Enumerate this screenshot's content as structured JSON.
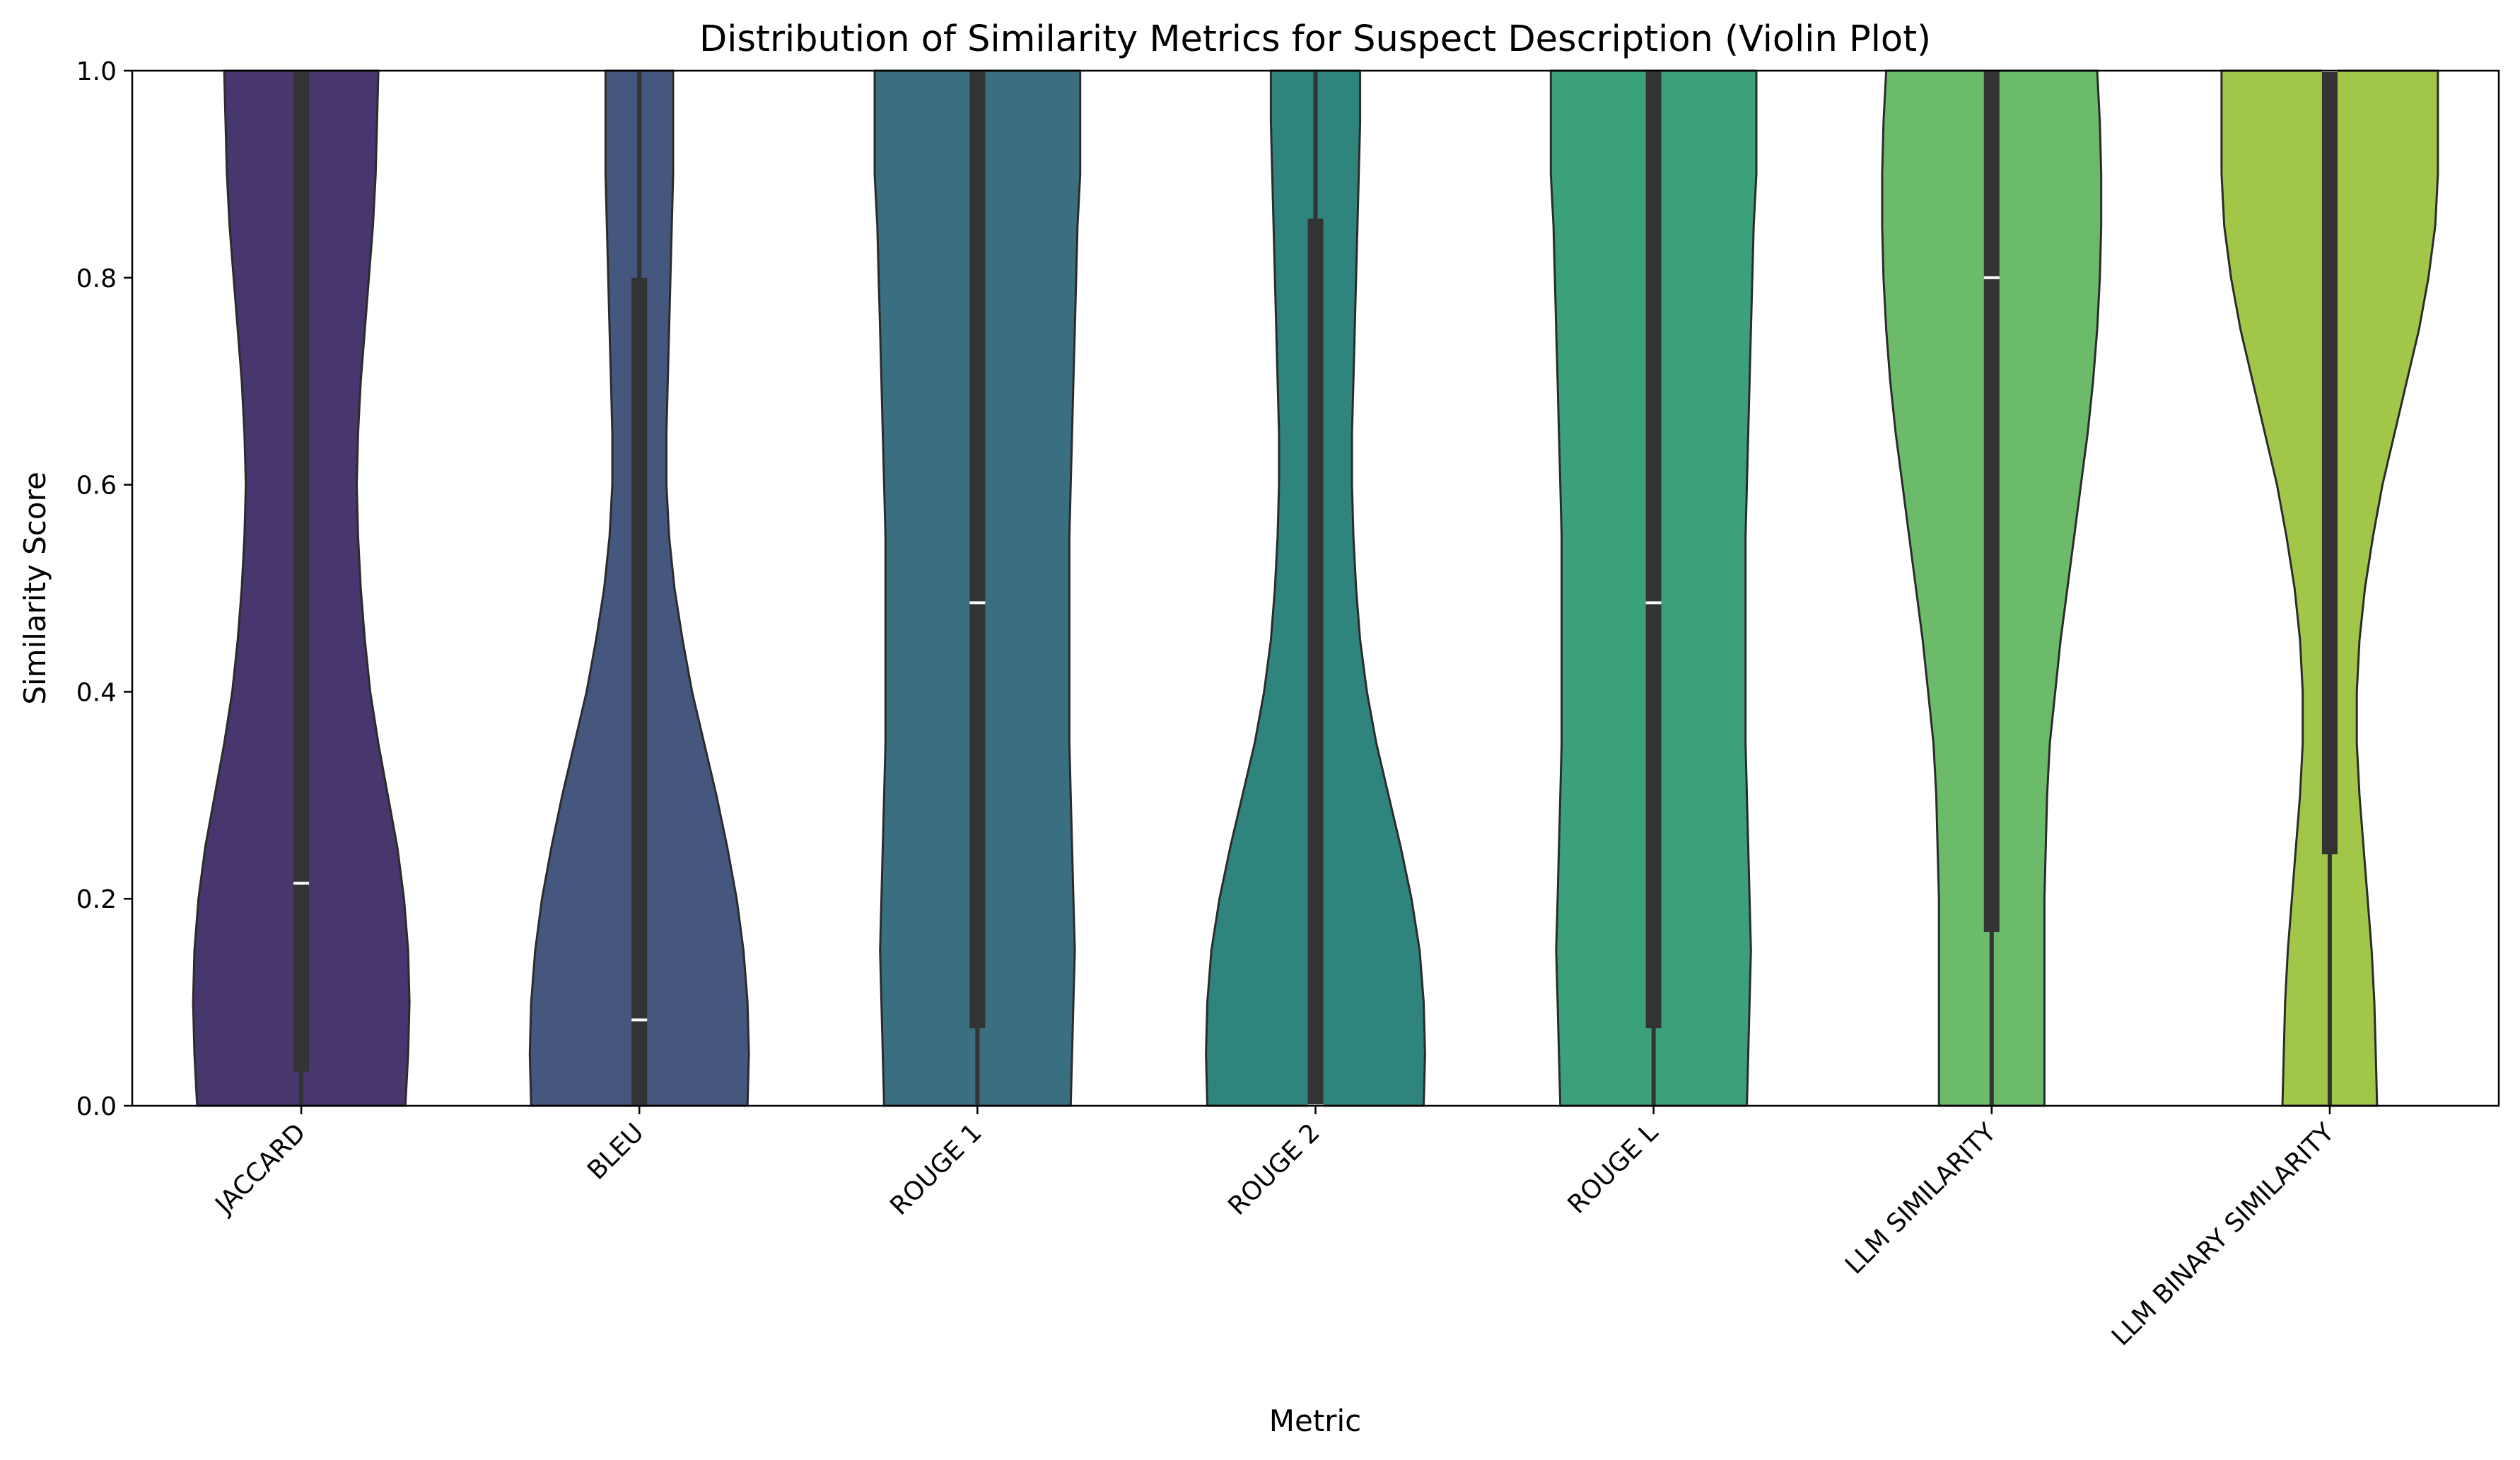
{
  "chart_data": {
    "type": "violin",
    "title": "Distribution of Similarity Metrics for Suspect Description (Violin Plot)",
    "xlabel": "Metric",
    "ylabel": "Similarity Score",
    "ylim": [
      0,
      1
    ],
    "yticks": [
      "0.0",
      "0.2",
      "0.4",
      "0.6",
      "0.8",
      "1.0"
    ],
    "grid": false,
    "legend": "none",
    "categories": [
      "JACCARD",
      "BLEU",
      "ROUGE 1",
      "ROUGE 2",
      "ROUGE L",
      "LLM SIMILARITY",
      "LLM BINARY SIMILARITY"
    ],
    "series": [
      {
        "color": "#48366f",
        "median": 0.215,
        "q1": 0.033,
        "q3": 1.0,
        "whisker_low": 0.0,
        "whisker_high": 1.0,
        "density": [
          [
            0.0,
            0.385
          ],
          [
            0.05,
            0.395
          ],
          [
            0.1,
            0.4
          ],
          [
            0.15,
            0.395
          ],
          [
            0.2,
            0.38
          ],
          [
            0.25,
            0.355
          ],
          [
            0.3,
            0.32
          ],
          [
            0.35,
            0.285
          ],
          [
            0.4,
            0.255
          ],
          [
            0.45,
            0.235
          ],
          [
            0.5,
            0.22
          ],
          [
            0.55,
            0.21
          ],
          [
            0.6,
            0.205
          ],
          [
            0.65,
            0.21
          ],
          [
            0.7,
            0.22
          ],
          [
            0.75,
            0.235
          ],
          [
            0.8,
            0.25
          ],
          [
            0.85,
            0.265
          ],
          [
            0.9,
            0.275
          ],
          [
            0.95,
            0.28
          ],
          [
            1.0,
            0.285
          ]
        ]
      },
      {
        "color": "#45577e",
        "median": 0.083,
        "q1": 0.0,
        "q3": 0.8,
        "whisker_low": 0.0,
        "whisker_high": 1.0,
        "density": [
          [
            0.0,
            0.4
          ],
          [
            0.05,
            0.405
          ],
          [
            0.1,
            0.4
          ],
          [
            0.15,
            0.385
          ],
          [
            0.2,
            0.36
          ],
          [
            0.25,
            0.325
          ],
          [
            0.3,
            0.285
          ],
          [
            0.35,
            0.24
          ],
          [
            0.4,
            0.195
          ],
          [
            0.45,
            0.16
          ],
          [
            0.5,
            0.13
          ],
          [
            0.55,
            0.11
          ],
          [
            0.6,
            0.1
          ],
          [
            0.65,
            0.1
          ],
          [
            0.7,
            0.105
          ],
          [
            0.75,
            0.11
          ],
          [
            0.8,
            0.115
          ],
          [
            0.85,
            0.12
          ],
          [
            0.9,
            0.125
          ],
          [
            0.95,
            0.125
          ],
          [
            1.0,
            0.125
          ]
        ]
      },
      {
        "color": "#3a6f82",
        "median": 0.486,
        "q1": 0.075,
        "q3": 1.0,
        "whisker_low": 0.0,
        "whisker_high": 1.0,
        "density": [
          [
            0.0,
            0.345
          ],
          [
            0.05,
            0.35
          ],
          [
            0.1,
            0.355
          ],
          [
            0.15,
            0.36
          ],
          [
            0.2,
            0.355
          ],
          [
            0.25,
            0.35
          ],
          [
            0.3,
            0.345
          ],
          [
            0.35,
            0.34
          ],
          [
            0.4,
            0.34
          ],
          [
            0.45,
            0.34
          ],
          [
            0.5,
            0.34
          ],
          [
            0.55,
            0.34
          ],
          [
            0.6,
            0.345
          ],
          [
            0.65,
            0.35
          ],
          [
            0.7,
            0.355
          ],
          [
            0.75,
            0.36
          ],
          [
            0.8,
            0.365
          ],
          [
            0.85,
            0.37
          ],
          [
            0.9,
            0.38
          ],
          [
            0.95,
            0.38
          ],
          [
            1.0,
            0.38
          ]
        ]
      },
      {
        "color": "#2f847d",
        "median": 0.0,
        "q1": 0.0,
        "q3": 0.857,
        "whisker_low": 0.0,
        "whisker_high": 1.0,
        "density": [
          [
            0.0,
            0.4
          ],
          [
            0.05,
            0.405
          ],
          [
            0.1,
            0.4
          ],
          [
            0.15,
            0.385
          ],
          [
            0.2,
            0.355
          ],
          [
            0.25,
            0.315
          ],
          [
            0.3,
            0.27
          ],
          [
            0.35,
            0.225
          ],
          [
            0.4,
            0.19
          ],
          [
            0.45,
            0.165
          ],
          [
            0.5,
            0.15
          ],
          [
            0.55,
            0.14
          ],
          [
            0.6,
            0.135
          ],
          [
            0.65,
            0.135
          ],
          [
            0.7,
            0.14
          ],
          [
            0.75,
            0.145
          ],
          [
            0.8,
            0.15
          ],
          [
            0.85,
            0.155
          ],
          [
            0.9,
            0.16
          ],
          [
            0.95,
            0.165
          ],
          [
            1.0,
            0.165
          ]
        ]
      },
      {
        "color": "#3ba17b",
        "median": 0.486,
        "q1": 0.075,
        "q3": 1.0,
        "whisker_low": 0.0,
        "whisker_high": 1.0,
        "density": [
          [
            0.0,
            0.345
          ],
          [
            0.05,
            0.35
          ],
          [
            0.1,
            0.355
          ],
          [
            0.15,
            0.36
          ],
          [
            0.2,
            0.355
          ],
          [
            0.25,
            0.35
          ],
          [
            0.3,
            0.345
          ],
          [
            0.35,
            0.34
          ],
          [
            0.4,
            0.34
          ],
          [
            0.45,
            0.34
          ],
          [
            0.5,
            0.34
          ],
          [
            0.55,
            0.34
          ],
          [
            0.6,
            0.345
          ],
          [
            0.65,
            0.35
          ],
          [
            0.7,
            0.355
          ],
          [
            0.75,
            0.36
          ],
          [
            0.8,
            0.365
          ],
          [
            0.85,
            0.37
          ],
          [
            0.9,
            0.38
          ],
          [
            0.95,
            0.38
          ],
          [
            1.0,
            0.38
          ]
        ]
      },
      {
        "color": "#6bbb6b",
        "median": 0.8,
        "q1": 0.168,
        "q3": 1.0,
        "whisker_low": 0.0,
        "whisker_high": 1.0,
        "density": [
          [
            0.0,
            0.195
          ],
          [
            0.05,
            0.195
          ],
          [
            0.1,
            0.195
          ],
          [
            0.15,
            0.195
          ],
          [
            0.2,
            0.195
          ],
          [
            0.25,
            0.2
          ],
          [
            0.3,
            0.205
          ],
          [
            0.35,
            0.215
          ],
          [
            0.4,
            0.235
          ],
          [
            0.45,
            0.255
          ],
          [
            0.5,
            0.28
          ],
          [
            0.55,
            0.305
          ],
          [
            0.6,
            0.33
          ],
          [
            0.65,
            0.355
          ],
          [
            0.7,
            0.375
          ],
          [
            0.75,
            0.39
          ],
          [
            0.8,
            0.4
          ],
          [
            0.85,
            0.405
          ],
          [
            0.9,
            0.405
          ],
          [
            0.95,
            0.4
          ],
          [
            1.0,
            0.39
          ]
        ]
      },
      {
        "color": "#a2c748",
        "median": 1.0,
        "q1": 0.243,
        "q3": 1.0,
        "whisker_low": 0.0,
        "whisker_high": 1.0,
        "density": [
          [
            0.0,
            0.175
          ],
          [
            0.05,
            0.17
          ],
          [
            0.1,
            0.165
          ],
          [
            0.15,
            0.155
          ],
          [
            0.2,
            0.14
          ],
          [
            0.25,
            0.125
          ],
          [
            0.3,
            0.11
          ],
          [
            0.35,
            0.1
          ],
          [
            0.4,
            0.1
          ],
          [
            0.45,
            0.11
          ],
          [
            0.5,
            0.13
          ],
          [
            0.55,
            0.16
          ],
          [
            0.6,
            0.195
          ],
          [
            0.65,
            0.24
          ],
          [
            0.7,
            0.285
          ],
          [
            0.75,
            0.33
          ],
          [
            0.8,
            0.365
          ],
          [
            0.85,
            0.39
          ],
          [
            0.9,
            0.4
          ],
          [
            0.95,
            0.4
          ],
          [
            1.0,
            0.4
          ]
        ]
      }
    ]
  }
}
